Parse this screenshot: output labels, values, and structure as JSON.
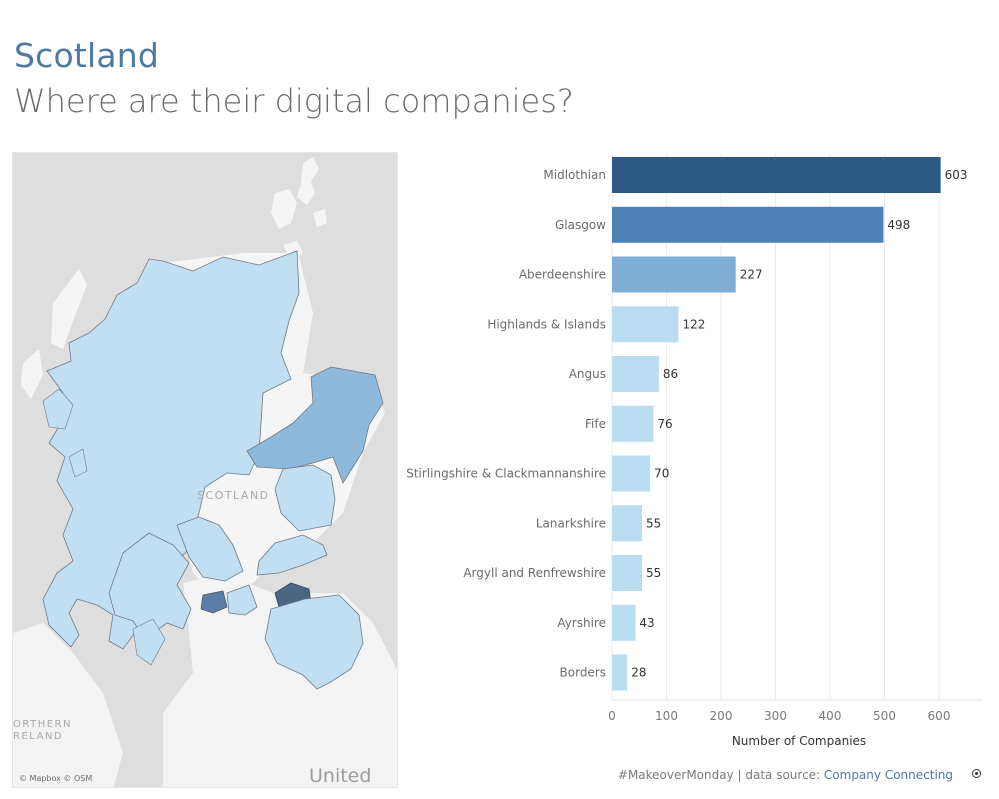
{
  "header": {
    "title": "Scotland",
    "subtitle": "Where are their digital companies?"
  },
  "map": {
    "attribution": "© Mapbox © OSM",
    "labels": {
      "scotland": "SCOTLAND",
      "northern_ireland_1": "ORTHERN",
      "northern_ireland_2": "RELAND",
      "united": "United"
    }
  },
  "chart_data": {
    "type": "bar",
    "orientation": "horizontal",
    "categories": [
      "Midlothian",
      "Glasgow",
      "Aberdeenshire",
      "Highlands & Islands",
      "Angus",
      "Fife",
      "Stirlingshire & Clackmannanshire",
      "Lanarkshire",
      "Argyll and Renfrewshire",
      "Ayrshire",
      "Borders"
    ],
    "values": [
      603,
      498,
      227,
      122,
      86,
      76,
      70,
      55,
      55,
      43,
      28
    ],
    "xlabel": "Number of Companies",
    "ylabel": "",
    "xlim": [
      0,
      680
    ],
    "xticks": [
      0,
      100,
      200,
      300,
      400,
      500,
      600
    ],
    "grid": "vertical",
    "colors": [
      "#2c5985",
      "#4e81b5",
      "#7eaed5",
      "#b9dcf0",
      "#b9dcf0",
      "#b9dcf0",
      "#b9dcf0",
      "#b9dcf0",
      "#b9dcf0",
      "#b9dcf0",
      "#b9dcf0"
    ]
  },
  "footer": {
    "text": "#MakeoverMonday | data source: ",
    "source_link": "Company Connecting"
  },
  "colors": {
    "title": "#4e79a7",
    "dark_bar": "#2c5985",
    "mid_bar": "#4e81b5",
    "light_bar": "#b9dcf0"
  }
}
